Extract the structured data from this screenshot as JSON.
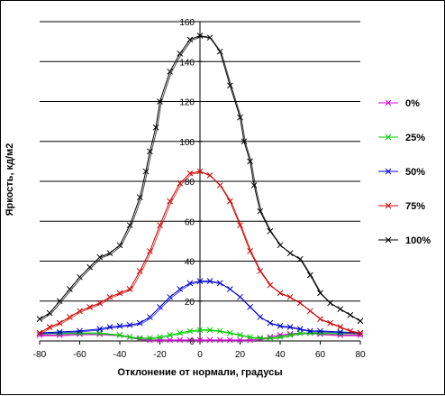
{
  "chart_data": {
    "type": "line",
    "title": "",
    "xlabel": "Отклонение от нормали, градусы",
    "ylabel": "Яркость, кд/м2",
    "xlim": [
      -80,
      80
    ],
    "ylim": [
      0,
      160
    ],
    "x_ticks": [
      "-80",
      "-60",
      "-40",
      "-20",
      "0",
      "20",
      "40",
      "60",
      "80"
    ],
    "y_ticks": [
      "0",
      "20",
      "40",
      "60",
      "80",
      "100",
      "120",
      "140",
      "160"
    ],
    "grid": "horizontal",
    "legend_position": "right",
    "series": [
      {
        "name": "0%",
        "color": "#cc00cc",
        "marker": "x",
        "x": [
          -80,
          -70,
          -60,
          -50,
          -40,
          -35,
          -30,
          -25,
          -20,
          -15,
          -10,
          -5,
          0,
          5,
          10,
          15,
          20,
          25,
          30,
          35,
          40,
          45,
          50,
          55,
          60,
          70,
          80
        ],
        "y": [
          3,
          3,
          3.5,
          3.5,
          3,
          2,
          1,
          0.5,
          0.5,
          0.5,
          0.5,
          0.5,
          0.5,
          0.5,
          0.5,
          0.5,
          0.5,
          0.5,
          1,
          2,
          3,
          3.5,
          4,
          4,
          3.5,
          3,
          3
        ]
      },
      {
        "name": "25%",
        "color": "#00cc00",
        "marker": "x",
        "x": [
          -80,
          -70,
          -60,
          -50,
          -40,
          -35,
          -30,
          -25,
          -20,
          -15,
          -10,
          -5,
          0,
          5,
          10,
          15,
          20,
          25,
          30,
          35,
          40,
          45,
          50,
          55,
          60,
          70,
          80
        ],
        "y": [
          4,
          4,
          4,
          4,
          3,
          2,
          1.5,
          1.5,
          2,
          3,
          4,
          5,
          5.5,
          5.5,
          5,
          4,
          3,
          2,
          1.5,
          1.5,
          2,
          3,
          4,
          4,
          4,
          4,
          4
        ]
      },
      {
        "name": "50%",
        "color": "#0000cc",
        "marker": "x",
        "x": [
          -80,
          -70,
          -60,
          -50,
          -45,
          -40,
          -35,
          -30,
          -25,
          -20,
          -15,
          -10,
          -5,
          0,
          5,
          10,
          15,
          20,
          25,
          30,
          35,
          40,
          45,
          50,
          55,
          60,
          70,
          80
        ],
        "y": [
          4,
          4.5,
          5,
          6,
          7,
          7.5,
          8,
          9,
          12,
          17,
          22,
          26,
          29,
          30,
          30,
          29,
          26,
          22,
          17,
          12,
          9,
          7.5,
          7,
          6,
          5,
          5,
          4.5,
          4
        ]
      },
      {
        "name": "75%",
        "color": "#cc0000",
        "marker": "x",
        "x": [
          -80,
          -75,
          -70,
          -65,
          -60,
          -55,
          -50,
          -45,
          -40,
          -35,
          -30,
          -25,
          -20,
          -15,
          -10,
          -5,
          0,
          5,
          10,
          15,
          20,
          25,
          30,
          35,
          40,
          45,
          50,
          55,
          60,
          65,
          70,
          75,
          80
        ],
        "y": [
          4,
          7,
          9,
          12,
          15,
          17,
          19,
          22,
          24,
          26,
          35,
          45,
          58,
          70,
          79,
          84,
          85,
          83,
          78,
          70,
          58,
          45,
          35,
          28,
          24,
          22,
          19,
          15,
          11,
          9,
          7,
          5,
          4
        ]
      },
      {
        "name": "100%",
        "color": "#000000",
        "marker": "x",
        "x": [
          -80,
          -75,
          -70,
          -65,
          -60,
          -55,
          -50,
          -45,
          -40,
          -35,
          -30,
          -27,
          -25,
          -22,
          -20,
          -15,
          -10,
          -5,
          0,
          5,
          10,
          15,
          20,
          22,
          25,
          27,
          30,
          35,
          40,
          45,
          50,
          55,
          60,
          65,
          70,
          75,
          80
        ],
        "y": [
          11,
          14,
          20,
          26,
          32,
          37,
          42,
          44,
          48,
          58,
          72,
          85,
          95,
          107,
          120,
          135,
          144,
          151,
          153,
          152,
          145,
          128,
          112,
          100,
          90,
          78,
          65,
          55,
          48,
          44,
          41,
          33,
          24,
          19,
          16,
          13,
          10
        ]
      }
    ]
  }
}
